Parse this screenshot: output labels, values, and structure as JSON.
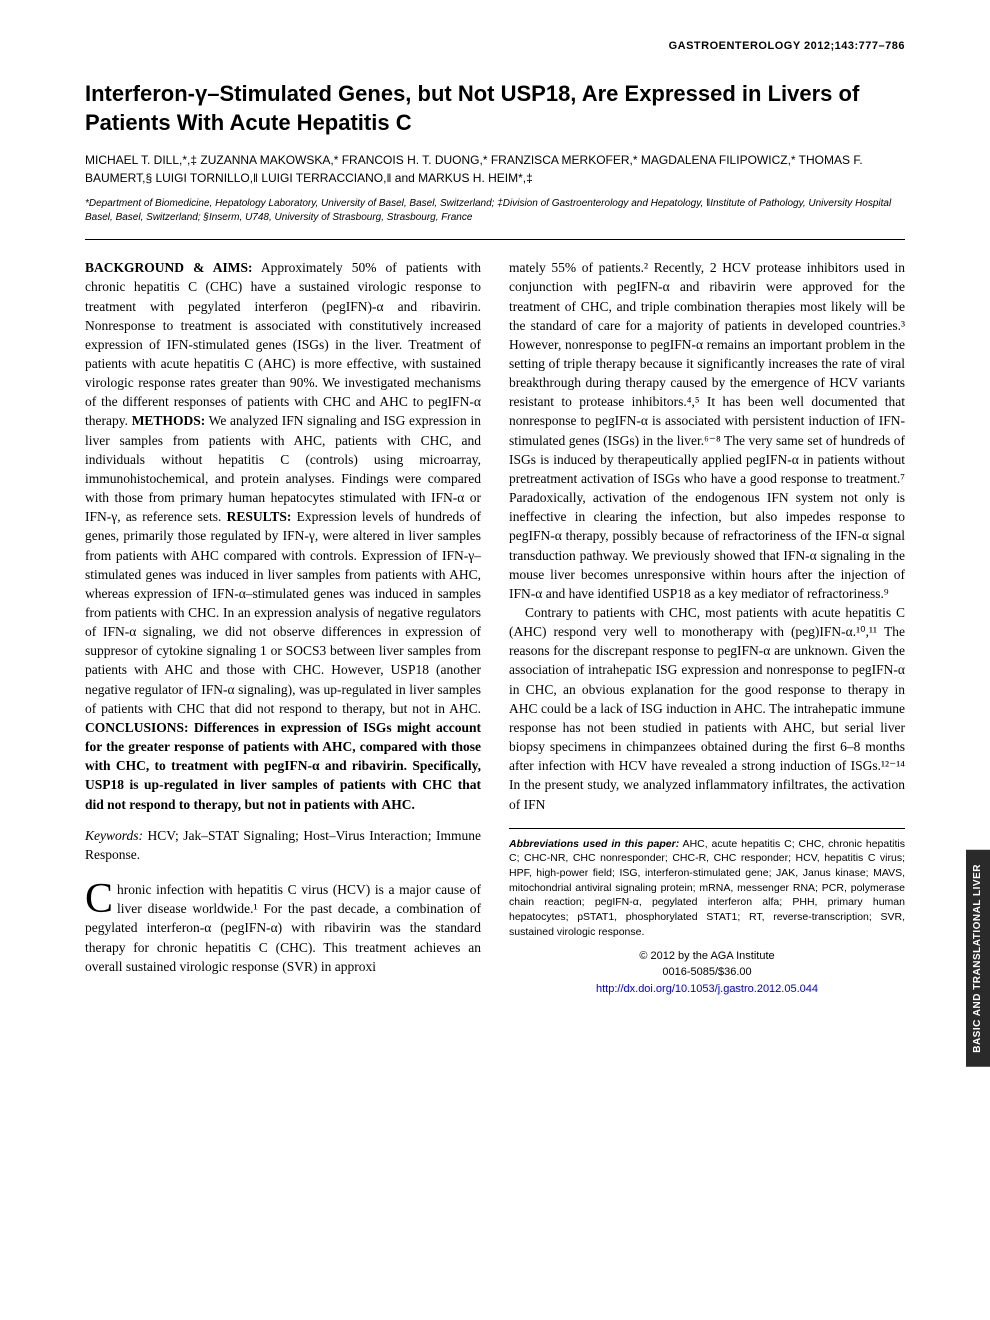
{
  "header": {
    "journal_ref": "GASTROENTEROLOGY 2012;143:777–786"
  },
  "title": "Interferon-γ–Stimulated Genes, but Not USP18, Are Expressed in Livers of Patients With Acute Hepatitis C",
  "authors": "MICHAEL T. DILL,*,‡ ZUZANNA MAKOWSKA,* FRANCOIS H. T. DUONG,* FRANZISCA MERKOFER,* MAGDALENA FILIPOWICZ,* THOMAS F. BAUMERT,§ LUIGI TORNILLO,‖ LUIGI TERRACCIANO,‖ and MARKUS H. HEIM*,‡",
  "affiliations": "*Department of Biomedicine, Hepatology Laboratory, University of Basel, Basel, Switzerland; ‡Division of Gastroenterology and Hepatology, ‖Institute of Pathology, University Hospital Basel, Basel, Switzerland; §Inserm, U748, University of Strasbourg, Strasbourg, France",
  "abstract": {
    "background_label": "BACKGROUND & AIMS:",
    "background": " Approximately 50% of patients with chronic hepatitis C (CHC) have a sustained virologic response to treatment with pegylated interferon (pegIFN)-α and ribavirin. Nonresponse to treatment is associated with constitutively increased expression of IFN-stimulated genes (ISGs) in the liver. Treatment of patients with acute hepatitis C (AHC) is more effective, with sustained virologic response rates greater than 90%. We investigated mechanisms of the different responses of patients with CHC and AHC to pegIFN-α therapy. ",
    "methods_label": "METHODS:",
    "methods": " We analyzed IFN signaling and ISG expression in liver samples from patients with AHC, patients with CHC, and individuals without hepatitis C (controls) using microarray, immunohistochemical, and protein analyses. Findings were compared with those from primary human hepatocytes stimulated with IFN-α or IFN-γ, as reference sets. ",
    "results_label": "RESULTS:",
    "results": " Expression levels of hundreds of genes, primarily those regulated by IFN-γ, were altered in liver samples from patients with AHC compared with controls. Expression of IFN-γ–stimulated genes was induced in liver samples from patients with AHC, whereas expression of IFN-α–stimulated genes was induced in samples from patients with CHC. In an expression analysis of negative regulators of IFN-α signaling, we did not observe differences in expression of suppresor of cytokine signaling 1 or SOCS3 between liver samples from patients with AHC and those with CHC. However, USP18 (another negative regulator of IFN-α signaling), was up-regulated in liver samples of patients with CHC that did not respond to therapy, but not in AHC. ",
    "conclusions_label": "CONCLUSIONS:",
    "conclusions": " Differences in expression of ISGs might account for the greater response of patients with AHC, compared with those with CHC, to treatment with pegIFN-α and ribavirin. Specifically, USP18 is up-regulated in liver samples of patients with CHC that did not respond to therapy, but not in patients with AHC."
  },
  "keywords_label": "Keywords:",
  "keywords": " HCV; Jak–STAT Signaling; Host–Virus Interaction; Immune Response.",
  "body": {
    "p1_dropcap": "C",
    "p1": "hronic infection with hepatitis C virus (HCV) is a major cause of liver disease worldwide.¹ For the past decade, a combination of pegylated interferon-α (pegIFN-α) with ribavirin was the standard therapy for chronic hepatitis C (CHC). This treatment achieves an overall sustained virologic response (SVR) in approxi",
    "p2": "mately 55% of patients.² Recently, 2 HCV protease inhibitors used in conjunction with pegIFN-α and ribavirin were approved for the treatment of CHC, and triple combination therapies most likely will be the standard of care for a majority of patients in developed countries.³ However, nonresponse to pegIFN-α remains an important problem in the setting of triple therapy because it significantly increases the rate of viral breakthrough during therapy caused by the emergence of HCV variants resistant to protease inhibitors.⁴,⁵ It has been well documented that nonresponse to pegIFN-α is associated with persistent induction of IFN-stimulated genes (ISGs) in the liver.⁶⁻⁸ The very same set of hundreds of ISGs is induced by therapeutically applied pegIFN-α in patients without pretreatment activation of ISGs who have a good response to treatment.⁷ Paradoxically, activation of the endogenous IFN system not only is ineffective in clearing the infection, but also impedes response to pegIFN-α therapy, possibly because of refractoriness of the IFN-α signal transduction pathway. We previously showed that IFN-α signaling in the mouse liver becomes unresponsive within hours after the injection of IFN-α and have identified USP18 as a key mediator of refractoriness.⁹",
    "p3": "Contrary to patients with CHC, most patients with acute hepatitis C (AHC) respond very well to monotherapy with (peg)IFN-α.¹⁰,¹¹ The reasons for the discrepant response to pegIFN-α are unknown. Given the association of intrahepatic ISG expression and nonresponse to pegIFN-α in CHC, an obvious explanation for the good response to therapy in AHC could be a lack of ISG induction in AHC. The intrahepatic immune response has not been studied in patients with AHC, but serial liver biopsy specimens in chimpanzees obtained during the first 6–8 months after infection with HCV have revealed a strong induction of ISGs.¹²⁻¹⁴ In the present study, we analyzed inflammatory infiltrates, the activation of IFN"
  },
  "abbreviations": {
    "label": "Abbreviations used in this paper:",
    "text": " AHC, acute hepatitis C; CHC, chronic hepatitis C; CHC-NR, CHC nonresponder; CHC-R, CHC responder; HCV, hepatitis C virus; HPF, high-power field; ISG, interferon-stimulated gene; JAK, Janus kinase; MAVS, mitochondrial antiviral signaling protein; mRNA, messenger RNA; PCR, polymerase chain reaction; pegIFN-α, pegylated interferon alfa; PHH, primary human hepatocytes; pSTAT1, phosphorylated STAT1; RT, reverse-transcription; SVR, sustained virologic response."
  },
  "copyright": {
    "line1": "© 2012 by the AGA Institute",
    "line2": "0016-5085/$36.00",
    "doi": "http://dx.doi.org/10.1053/j.gastro.2012.05.044"
  },
  "side_tab": "BASIC AND\nTRANSLATIONAL\nLIVER",
  "colors": {
    "text": "#000000",
    "link": "#0000cc",
    "tab_bg": "#2a2a2a",
    "tab_text": "#ffffff"
  }
}
